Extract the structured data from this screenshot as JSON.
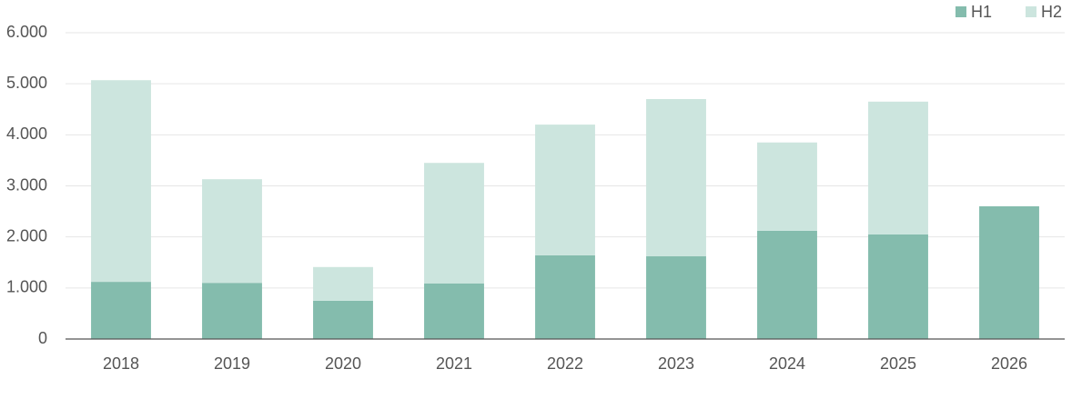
{
  "chart_data": {
    "type": "stacked_bar",
    "categories": [
      "2018",
      "2019",
      "2020",
      "2021",
      "2022",
      "2023",
      "2024",
      "2025",
      "2026"
    ],
    "series": [
      {
        "name": "H1",
        "color": "#84bcad",
        "values": [
          1120,
          1100,
          750,
          1090,
          1640,
          1620,
          2120,
          2050,
          2600
        ]
      },
      {
        "name": "H2",
        "color": "#cce5de",
        "values": [
          3950,
          2030,
          660,
          2360,
          2560,
          3080,
          1730,
          2600,
          null
        ]
      }
    ],
    "ylim": [
      0,
      6000
    ],
    "yticks": [
      0,
      {
        "value": 1000,
        "label": "1.000"
      },
      {
        "value": 2000,
        "label": "2.000"
      },
      {
        "value": 3000,
        "label": "3.000"
      },
      {
        "value": 4000,
        "label": "4.000"
      },
      {
        "value": 5000,
        "label": "5.000"
      },
      {
        "value": 6000,
        "label": "6.000"
      }
    ],
    "grid": true,
    "legend": "top-right"
  }
}
